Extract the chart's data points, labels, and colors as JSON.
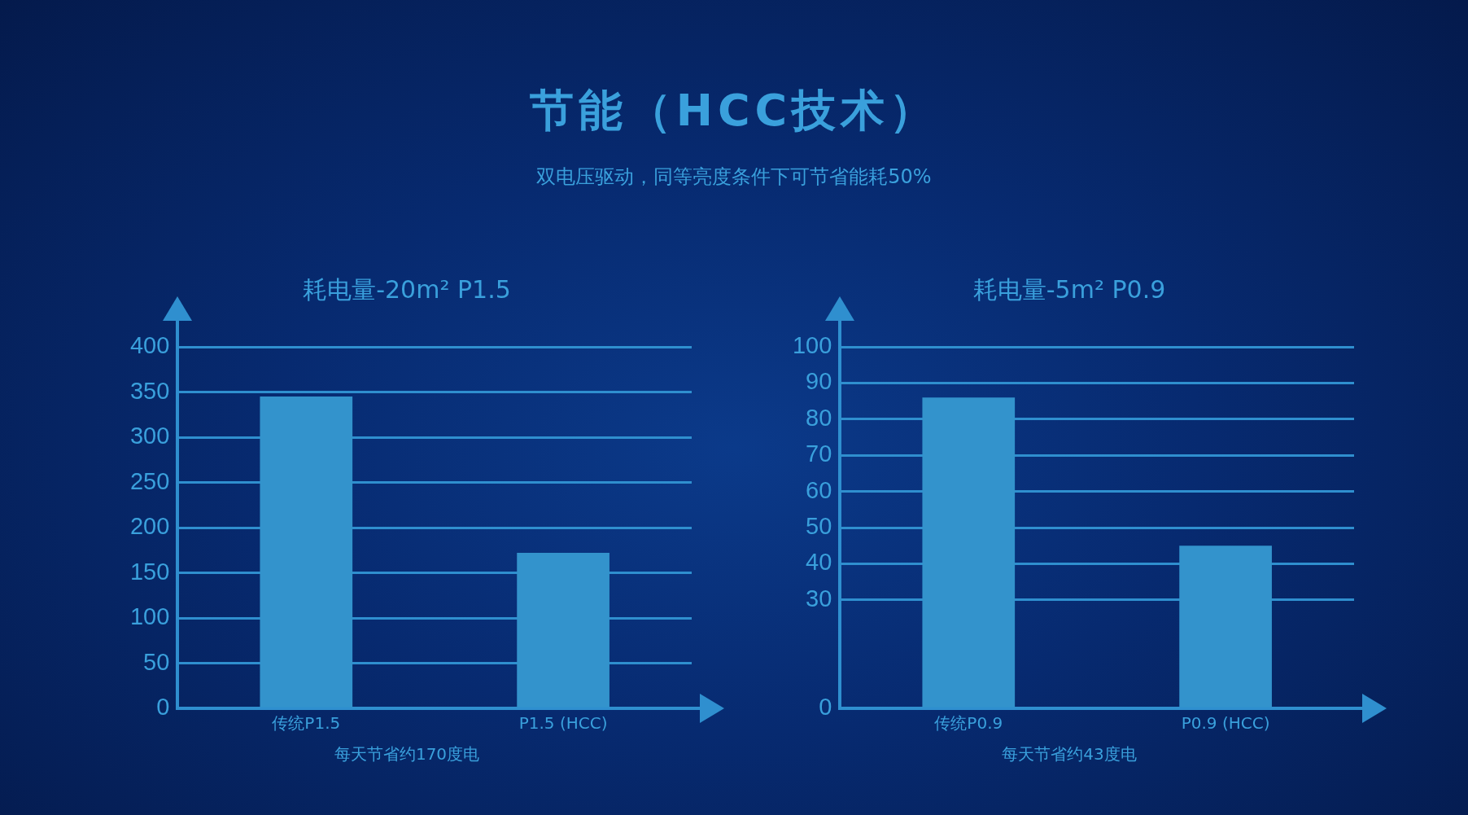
{
  "chart_data": [
    {
      "type": "other",
      "title": "节能（HCC技术）",
      "subtitle": "双电压驱动，同等亮度条件下可节省能耗50%"
    },
    {
      "type": "bar",
      "title": "耗电量-20m² P1.5",
      "categories": [
        "传统P1.5",
        "P1.5 (HCC)"
      ],
      "values": [
        345,
        172
      ],
      "color": "#3393cc",
      "ylim": [
        0,
        400
      ],
      "yticks": [
        0,
        50,
        100,
        150,
        200,
        250,
        300,
        350,
        400
      ],
      "grid": "y",
      "annotations": [
        "每天节省约170度电"
      ]
    },
    {
      "type": "bar",
      "title": "耗电量-5m² P0.9",
      "categories": [
        "传统P0.9",
        "P0.9 (HCC)"
      ],
      "values": [
        86,
        45
      ],
      "color": "#3393cc",
      "ylim": [
        0,
        100
      ],
      "yticks": [
        0,
        30,
        40,
        50,
        60,
        70,
        80,
        90,
        100
      ],
      "grid": "y",
      "annotations": [
        "每天节省约43度电"
      ]
    }
  ]
}
